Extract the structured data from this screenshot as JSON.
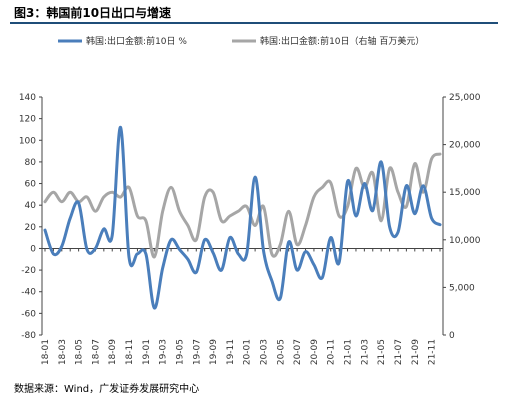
{
  "title": "图3：韩国前10日出口与增速",
  "source": "数据来源：Wind，广发证券发展研究中心",
  "chart_data": {
    "type": "line",
    "legend_placement": "top",
    "grid": false,
    "colors": {
      "left_series": "#4a7ebb",
      "right_series": "#a6a6a6",
      "axis": "#444444"
    },
    "x": [
      "18-01",
      "18-02",
      "18-03",
      "18-04",
      "18-05",
      "18-06",
      "18-07",
      "18-08",
      "18-09",
      "18-10",
      "18-11",
      "18-12",
      "19-01",
      "19-02",
      "19-03",
      "19-04",
      "19-05",
      "19-06",
      "19-07",
      "19-08",
      "19-09",
      "19-10",
      "19-11",
      "19-12",
      "20-01",
      "20-02",
      "20-03",
      "20-04",
      "20-05",
      "20-06",
      "20-07",
      "20-08",
      "20-09",
      "20-10",
      "20-11",
      "20-12",
      "21-01",
      "21-02",
      "21-03",
      "21-04",
      "21-05",
      "21-06",
      "21-07",
      "21-08",
      "21-09",
      "21-10",
      "21-11",
      "21-12"
    ],
    "x_tick_labels": [
      "18-01",
      "18-03",
      "18-05",
      "18-07",
      "18-09",
      "18-11",
      "19-01",
      "19-03",
      "19-05",
      "19-07",
      "19-09",
      "19-11",
      "20-01",
      "20-03",
      "20-05",
      "20-07",
      "20-09",
      "20-11",
      "21-01",
      "21-03",
      "21-05",
      "21-07",
      "21-09",
      "21-11"
    ],
    "y_left": {
      "min": -80,
      "max": 140,
      "ticks": [
        -80,
        -60,
        -40,
        -20,
        0,
        20,
        40,
        60,
        80,
        100,
        120,
        140
      ]
    },
    "y_right": {
      "min": 0,
      "max": 25000,
      "ticks": [
        "0",
        "5,000",
        "10,000",
        "15,000",
        "20,000",
        "25,000"
      ]
    },
    "series": [
      {
        "name": "韩国:出口金额:前10日 %",
        "axis": "left",
        "values": [
          17,
          -5,
          2,
          28,
          42,
          -1,
          0,
          18,
          12,
          112,
          -8,
          -5,
          -5,
          -55,
          -18,
          8,
          -1,
          -10,
          -22,
          8,
          -4,
          -20,
          10,
          -5,
          -5,
          66,
          -2,
          -30,
          -46,
          6,
          -20,
          -3,
          -15,
          -27,
          10,
          -13,
          62,
          30,
          60,
          35,
          80,
          20,
          15,
          58,
          32,
          58,
          28,
          22
        ]
      },
      {
        "name": "韩国:出口金额:前10日（右轴 百万美元）",
        "axis": "right",
        "values": [
          14000,
          15000,
          14000,
          15000,
          14000,
          14500,
          13000,
          14500,
          15000,
          14500,
          15500,
          12500,
          12000,
          8200,
          13000,
          15500,
          13000,
          11500,
          10000,
          14500,
          15000,
          12000,
          12500,
          13000,
          13500,
          11500,
          13500,
          8500,
          9500,
          13000,
          9500,
          11500,
          14500,
          15500,
          16000,
          12500,
          13500,
          17500,
          15500,
          17000,
          12000,
          17500,
          15000,
          13500,
          18000,
          15000,
          18500,
          19000
        ]
      }
    ]
  }
}
